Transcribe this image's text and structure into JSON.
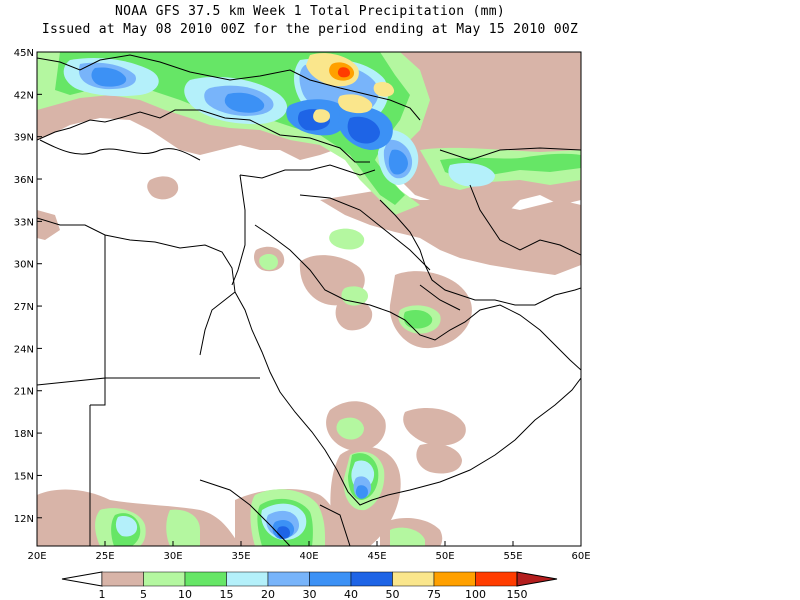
{
  "title": {
    "line1": "NOAA GFS 37.5 km Week 1 Total Precipitation (mm)",
    "line2": "Issued at May 08 2010 00Z for the period ending at May 15 2010 00Z"
  },
  "map": {
    "lon_range": [
      20,
      60
    ],
    "lat_range": [
      10,
      45
    ],
    "x_ticks": [
      "20E",
      "25E",
      "30E",
      "35E",
      "40E",
      "45E",
      "50E",
      "55E",
      "60E"
    ],
    "y_ticks": [
      "12N",
      "15N",
      "18N",
      "21N",
      "24N",
      "27N",
      "30N",
      "33N",
      "36N",
      "39N",
      "42N",
      "45N"
    ]
  },
  "legend": {
    "labels": [
      "1",
      "5",
      "10",
      "15",
      "20",
      "30",
      "40",
      "50",
      "75",
      "100",
      "150"
    ],
    "colors": [
      "#ffffff",
      "#d8b4a8",
      "#b4f7a0",
      "#66e666",
      "#b4f0fa",
      "#78b4fa",
      "#3c91f5",
      "#1e64e6",
      "#fae68c",
      "#ffa000",
      "#ff3c00",
      "#b41e1e"
    ]
  },
  "colors": {
    "level_1": "#d8b4a8",
    "level_5": "#b4f7a0",
    "level_10": "#66e666",
    "level_15": "#b4f0fa",
    "level_20": "#78b4fa",
    "level_30": "#3c91f5",
    "level_40": "#1e64e6",
    "level_50": "#fae68c",
    "level_75": "#ffa000",
    "level_100": "#ff3c00"
  }
}
